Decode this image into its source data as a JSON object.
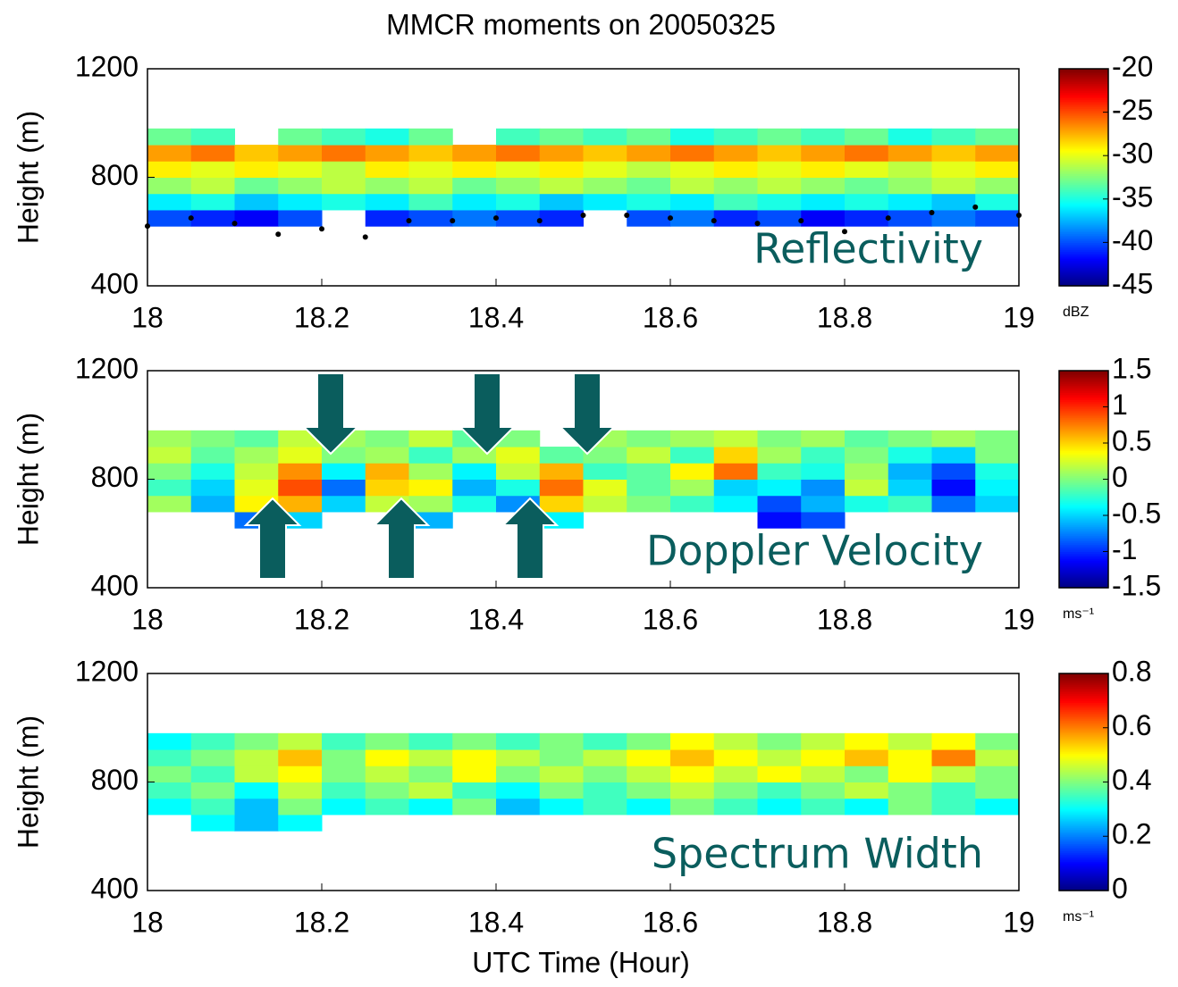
{
  "chart_data": [
    {
      "type": "heatmap",
      "title": "MMCR moments on 20050325",
      "ylabel": "Height (m)",
      "label": "Reflectivity",
      "colorbar_label": "dBZ",
      "xlim": [
        18,
        19
      ],
      "xticks": [
        18,
        18.2,
        18.4,
        18.6,
        18.8,
        19
      ],
      "ylim": [
        400,
        1200
      ],
      "yticks": [
        400,
        800,
        1200
      ],
      "clim": [
        -45,
        -20
      ],
      "cticks": [
        -45,
        -40,
        -35,
        -30,
        -25,
        -20
      ],
      "xbins": [
        18,
        18.05,
        18.1,
        18.15,
        18.2,
        18.25,
        18.3,
        18.35,
        18.4,
        18.45,
        18.5,
        18.55,
        18.6,
        18.65,
        18.7,
        18.75,
        18.8,
        18.85,
        18.9,
        18.95,
        19
      ],
      "ybins": [
        620,
        680,
        740,
        800,
        860,
        920,
        980
      ],
      "values": [
        [
          -40,
          -41,
          -42,
          -40,
          null,
          -41,
          -40,
          -39,
          -40,
          -41,
          null,
          -40,
          -39,
          -41,
          -40,
          -42,
          -41,
          -40,
          -39,
          -40
        ],
        [
          -36,
          -35,
          -37,
          -36,
          -35,
          -36,
          -34,
          -36,
          -35,
          -37,
          -36,
          -35,
          -36,
          -34,
          -35,
          -36,
          -35,
          -36,
          -37,
          -35
        ],
        [
          -32,
          -31,
          -33,
          -32,
          -31,
          -32,
          -31,
          -33,
          -32,
          -31,
          -32,
          -33,
          -31,
          -32,
          -31,
          -32,
          -33,
          -32,
          -31,
          -32
        ],
        [
          -29,
          -30,
          -29,
          -30,
          -31,
          -29,
          -30,
          -29,
          -30,
          -29,
          -30,
          -31,
          -30,
          -29,
          -30,
          -29,
          -30,
          -31,
          -30,
          -29
        ],
        [
          -27,
          -26,
          -28,
          -27,
          -26,
          -27,
          -28,
          -27,
          -26,
          -27,
          -28,
          -27,
          -26,
          -27,
          -28,
          -27,
          -26,
          -27,
          -28,
          -27
        ],
        [
          -33,
          -34,
          null,
          -33,
          -34,
          -35,
          -33,
          null,
          -34,
          -33,
          -34,
          -33,
          -35,
          -34,
          -33,
          -34,
          -33,
          -35,
          -34,
          -33
        ]
      ],
      "cloud_base": {
        "x": [
          18,
          18.05,
          18.1,
          18.15,
          18.2,
          18.25,
          18.3,
          18.35,
          18.4,
          18.45,
          18.5,
          18.55,
          18.6,
          18.65,
          18.7,
          18.75,
          18.8,
          18.85,
          18.9,
          18.95,
          19
        ],
        "y": [
          620,
          650,
          630,
          590,
          610,
          580,
          640,
          640,
          650,
          640,
          660,
          660,
          650,
          640,
          630,
          640,
          600,
          650,
          670,
          690,
          660
        ]
      }
    },
    {
      "type": "heatmap",
      "ylabel": "Height (m)",
      "label": "Doppler Velocity",
      "colorbar_label": "ms⁻¹",
      "xlim": [
        18,
        19
      ],
      "xticks": [
        18,
        18.2,
        18.4,
        18.6,
        18.8,
        19
      ],
      "ylim": [
        400,
        1200
      ],
      "yticks": [
        400,
        800,
        1200
      ],
      "clim": [
        -1.5,
        1.5
      ],
      "cticks": [
        -1.5,
        -1,
        -0.5,
        0,
        0.5,
        1,
        1.5
      ],
      "xbins": [
        18,
        18.05,
        18.1,
        18.15,
        18.2,
        18.25,
        18.3,
        18.35,
        18.4,
        18.45,
        18.5,
        18.55,
        18.6,
        18.65,
        18.7,
        18.75,
        18.8,
        18.85,
        18.9,
        18.95,
        19
      ],
      "ybins": [
        620,
        680,
        740,
        800,
        860,
        920,
        980
      ],
      "values": [
        [
          null,
          null,
          -0.8,
          -0.5,
          null,
          null,
          -0.6,
          null,
          null,
          -0.4,
          null,
          null,
          null,
          null,
          -1.1,
          -0.9,
          null,
          null,
          null,
          null
        ],
        [
          0.1,
          -0.6,
          0.4,
          0.6,
          -0.5,
          0.2,
          0.1,
          -0.3,
          -0.7,
          0.5,
          0.2,
          0.0,
          -0.2,
          -0.4,
          -0.9,
          -0.6,
          -0.3,
          -0.2,
          -0.8,
          -0.5
        ],
        [
          -0.2,
          -0.5,
          0.3,
          0.9,
          -0.8,
          0.5,
          0.4,
          -0.6,
          -0.3,
          0.8,
          0.3,
          -0.1,
          0.1,
          -0.5,
          -0.4,
          -0.7,
          0.2,
          -0.5,
          -1.1,
          -0.4
        ],
        [
          0.0,
          -0.3,
          0.2,
          0.7,
          -0.4,
          0.6,
          0.1,
          -0.4,
          0.2,
          0.6,
          -0.2,
          -0.1,
          0.4,
          0.8,
          -0.2,
          -0.3,
          0.1,
          -0.6,
          -0.9,
          -0.3
        ],
        [
          0.2,
          -0.1,
          0.1,
          0.3,
          0.0,
          0.1,
          -0.2,
          0.1,
          0.3,
          -0.1,
          0.0,
          0.2,
          -0.2,
          0.5,
          0.1,
          -0.2,
          0.0,
          -0.3,
          -0.5,
          0.0
        ],
        [
          0.1,
          0.0,
          -0.1,
          0.2,
          0.1,
          0.0,
          0.2,
          -0.1,
          0.0,
          null,
          0.1,
          0.0,
          0.1,
          0.2,
          0.0,
          0.1,
          -0.1,
          0.0,
          0.1,
          0.0
        ]
      ]
    },
    {
      "type": "heatmap",
      "ylabel": "Height (m)",
      "xlabel": "UTC Time (Hour)",
      "label": "Spectrum Width",
      "colorbar_label": "ms⁻¹",
      "xlim": [
        18,
        19
      ],
      "xticks": [
        18,
        18.2,
        18.4,
        18.6,
        18.8,
        19
      ],
      "ylim": [
        400,
        1200
      ],
      "yticks": [
        400,
        800,
        1200
      ],
      "clim": [
        0,
        0.8
      ],
      "cticks": [
        0,
        0.2,
        0.4,
        0.6,
        0.8
      ],
      "xbins": [
        18,
        18.05,
        18.1,
        18.15,
        18.2,
        18.25,
        18.3,
        18.35,
        18.4,
        18.45,
        18.5,
        18.55,
        18.6,
        18.65,
        18.7,
        18.75,
        18.8,
        18.85,
        18.9,
        18.95,
        19
      ],
      "ybins": [
        620,
        680,
        740,
        800,
        860,
        920,
        980
      ],
      "values": [
        [
          null,
          0.3,
          0.25,
          0.3,
          null,
          null,
          null,
          null,
          null,
          null,
          null,
          null,
          null,
          null,
          null,
          null,
          null,
          null,
          null,
          null
        ],
        [
          0.3,
          0.35,
          0.25,
          0.4,
          0.3,
          0.35,
          0.3,
          0.4,
          0.25,
          0.3,
          0.35,
          0.3,
          0.4,
          0.35,
          0.3,
          0.35,
          0.3,
          0.4,
          0.35,
          0.3
        ],
        [
          0.35,
          0.4,
          0.3,
          0.45,
          0.35,
          0.4,
          0.45,
          0.35,
          0.3,
          0.4,
          0.35,
          0.4,
          0.45,
          0.4,
          0.35,
          0.4,
          0.45,
          0.4,
          0.35,
          0.4
        ],
        [
          0.4,
          0.35,
          0.45,
          0.5,
          0.4,
          0.45,
          0.4,
          0.5,
          0.4,
          0.45,
          0.4,
          0.45,
          0.5,
          0.45,
          0.5,
          0.45,
          0.4,
          0.5,
          0.45,
          0.4
        ],
        [
          0.35,
          0.4,
          0.45,
          0.55,
          0.4,
          0.5,
          0.45,
          0.5,
          0.45,
          0.4,
          0.45,
          0.5,
          0.55,
          0.5,
          0.45,
          0.5,
          0.55,
          0.5,
          0.6,
          0.45
        ],
        [
          0.3,
          0.35,
          0.4,
          0.45,
          0.35,
          0.4,
          0.35,
          0.4,
          0.35,
          0.4,
          0.35,
          0.4,
          0.5,
          0.45,
          0.4,
          0.45,
          0.5,
          0.45,
          0.5,
          0.4
        ]
      ]
    }
  ]
}
